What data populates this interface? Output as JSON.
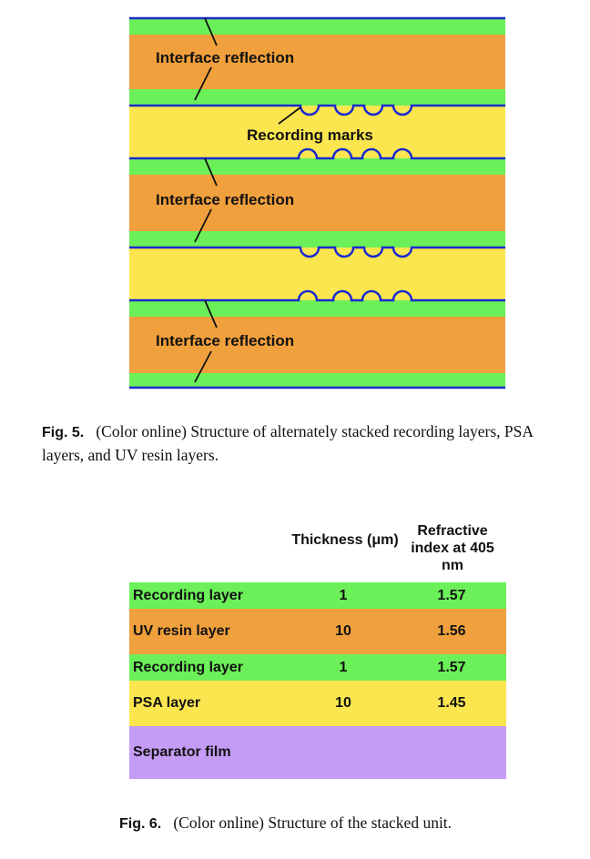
{
  "figure5": {
    "labels": {
      "interface_reflection": "Interface reflection",
      "recording_marks": "Recording marks"
    },
    "colors": {
      "recording_layer": "#6cf05a",
      "uv_resin_layer": "#f0a03c",
      "psa_layer": "#fbe650",
      "interface_line": "#1a2bd0"
    },
    "caption": {
      "number": "Fig. 5.",
      "text": "(Color online) Structure of alternately stacked recording layers, PSA layers, and UV resin layers."
    }
  },
  "figure6": {
    "headers": {
      "thickness": "Thickness (μm)",
      "refractive_index": "Refractive index at 405 nm"
    },
    "rows": [
      {
        "name": "Recording layer",
        "thickness": "1",
        "refractive_index": "1.57",
        "color": "#6cf05a"
      },
      {
        "name": "UV resin layer",
        "thickness": "10",
        "refractive_index": "1.56",
        "color": "#f0a03c"
      },
      {
        "name": "Recording layer",
        "thickness": "1",
        "refractive_index": "1.57",
        "color": "#6cf05a"
      },
      {
        "name": "PSA layer",
        "thickness": "10",
        "refractive_index": "1.45",
        "color": "#fbe650"
      },
      {
        "name": "Separator film",
        "thickness": "",
        "refractive_index": "",
        "color": "#c59cf5"
      }
    ],
    "caption": {
      "number": "Fig. 6.",
      "text": "(Color online) Structure of the stacked unit."
    }
  }
}
